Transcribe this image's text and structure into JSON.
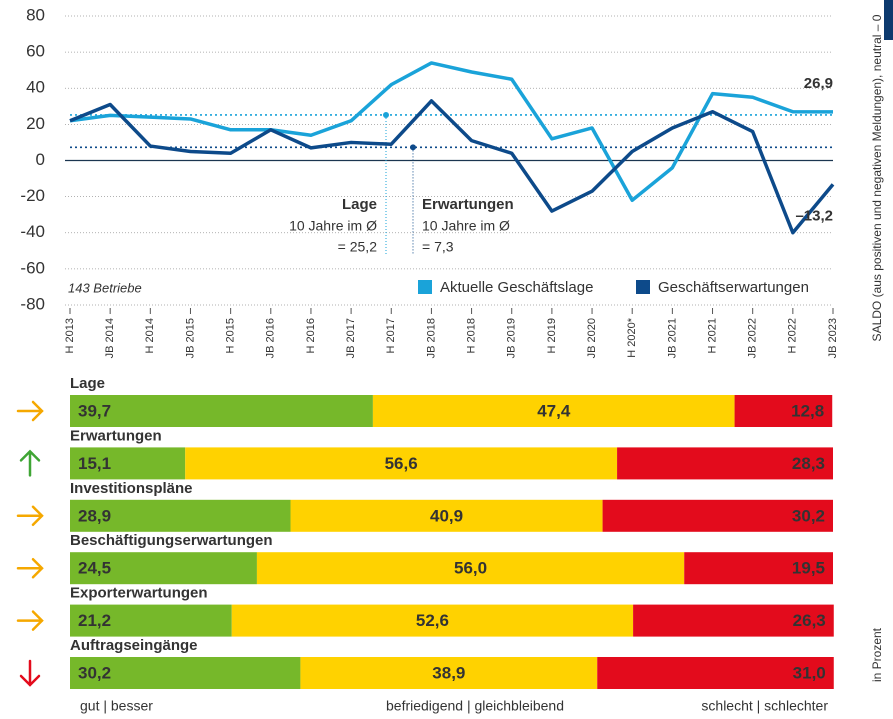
{
  "chart_data": [
    {
      "type": "line",
      "categories": [
        "H 2013",
        "JB 2014",
        "H 2014",
        "JB 2015",
        "H 2015",
        "JB 2016",
        "H 2016",
        "JB 2017",
        "H 2017",
        "JB 2018",
        "H 2018",
        "JB 2019",
        "H 2019",
        "JB 2020",
        "H 2020*",
        "JB 2021",
        "H 2021",
        "JB 2022",
        "H 2022",
        "JB 2023"
      ],
      "series": [
        {
          "name": "Aktuelle Geschäftslage",
          "color": "#1aa3d9",
          "values": [
            22,
            25,
            24,
            23,
            17,
            17,
            14,
            22,
            42,
            54,
            49,
            45,
            12,
            18,
            -22,
            -4,
            37,
            35,
            27,
            26.9
          ],
          "value_labels": [
            null,
            null,
            null,
            null,
            null,
            null,
            null,
            null,
            null,
            null,
            null,
            null,
            null,
            null,
            null,
            null,
            null,
            null,
            null,
            "26,9"
          ]
        },
        {
          "name": "Geschäftserwartungen",
          "color": "#0d4a8a",
          "values": [
            22,
            31,
            8,
            5,
            4,
            17,
            7,
            10,
            9,
            33,
            11,
            4,
            -28,
            -17,
            5,
            18,
            27,
            16,
            -40,
            -13.2
          ],
          "value_labels": [
            null,
            null,
            null,
            null,
            null,
            null,
            null,
            null,
            null,
            null,
            null,
            null,
            null,
            null,
            null,
            null,
            null,
            null,
            null,
            "–13,2"
          ]
        }
      ],
      "averages": [
        {
          "title": "Lage",
          "text": "10 Jahre im Ø",
          "value": 25.2,
          "label": "= 25,2"
        },
        {
          "title": "Erwartungen",
          "text": "10 Jahre im Ø",
          "value": 7.3,
          "label": "= 7,3"
        }
      ],
      "note": "143 Betriebe",
      "y_label": "SALDO (aus positiven und negativen Meldungen), neutral – 0",
      "ylim": [
        -80,
        80
      ],
      "yticks": [
        -80,
        -60,
        -40,
        -20,
        0,
        20,
        40,
        60,
        80
      ],
      "grid": true,
      "legend": "bottom-right"
    },
    {
      "type": "stacked-barh",
      "categories": [
        "Lage",
        "Erwartungen",
        "Investitionspläne",
        "Beschäftigungserwartungen",
        "Exporterwartungen",
        "Auftragseingänge"
      ],
      "trend": [
        "right",
        "up",
        "right",
        "right",
        "right",
        "down"
      ],
      "series": [
        {
          "name": "gut | besser",
          "color": "#76b82a",
          "values": [
            39.7,
            15.1,
            28.9,
            24.5,
            21.2,
            30.2
          ],
          "value_labels": [
            "39,7",
            "15,1",
            "28,9",
            "24,5",
            "21,2",
            "30,2"
          ]
        },
        {
          "name": "befriedigend | gleichbleibend",
          "color": "#ffd200",
          "values": [
            47.4,
            56.6,
            40.9,
            56.0,
            52.6,
            38.9
          ],
          "value_labels": [
            "47,4",
            "56,6",
            "40,9",
            "56,0",
            "52,6",
            "38,9"
          ]
        },
        {
          "name": "schlecht | schlechter",
          "color": "#e30b1c",
          "values": [
            12.8,
            28.3,
            30.2,
            19.5,
            26.3,
            31.0
          ],
          "value_labels": [
            "12,8",
            "28,3",
            "30,2",
            "19,5",
            "26,3",
            "31,0"
          ]
        }
      ],
      "xlim": [
        0,
        100
      ],
      "unit": "in Prozent"
    }
  ]
}
